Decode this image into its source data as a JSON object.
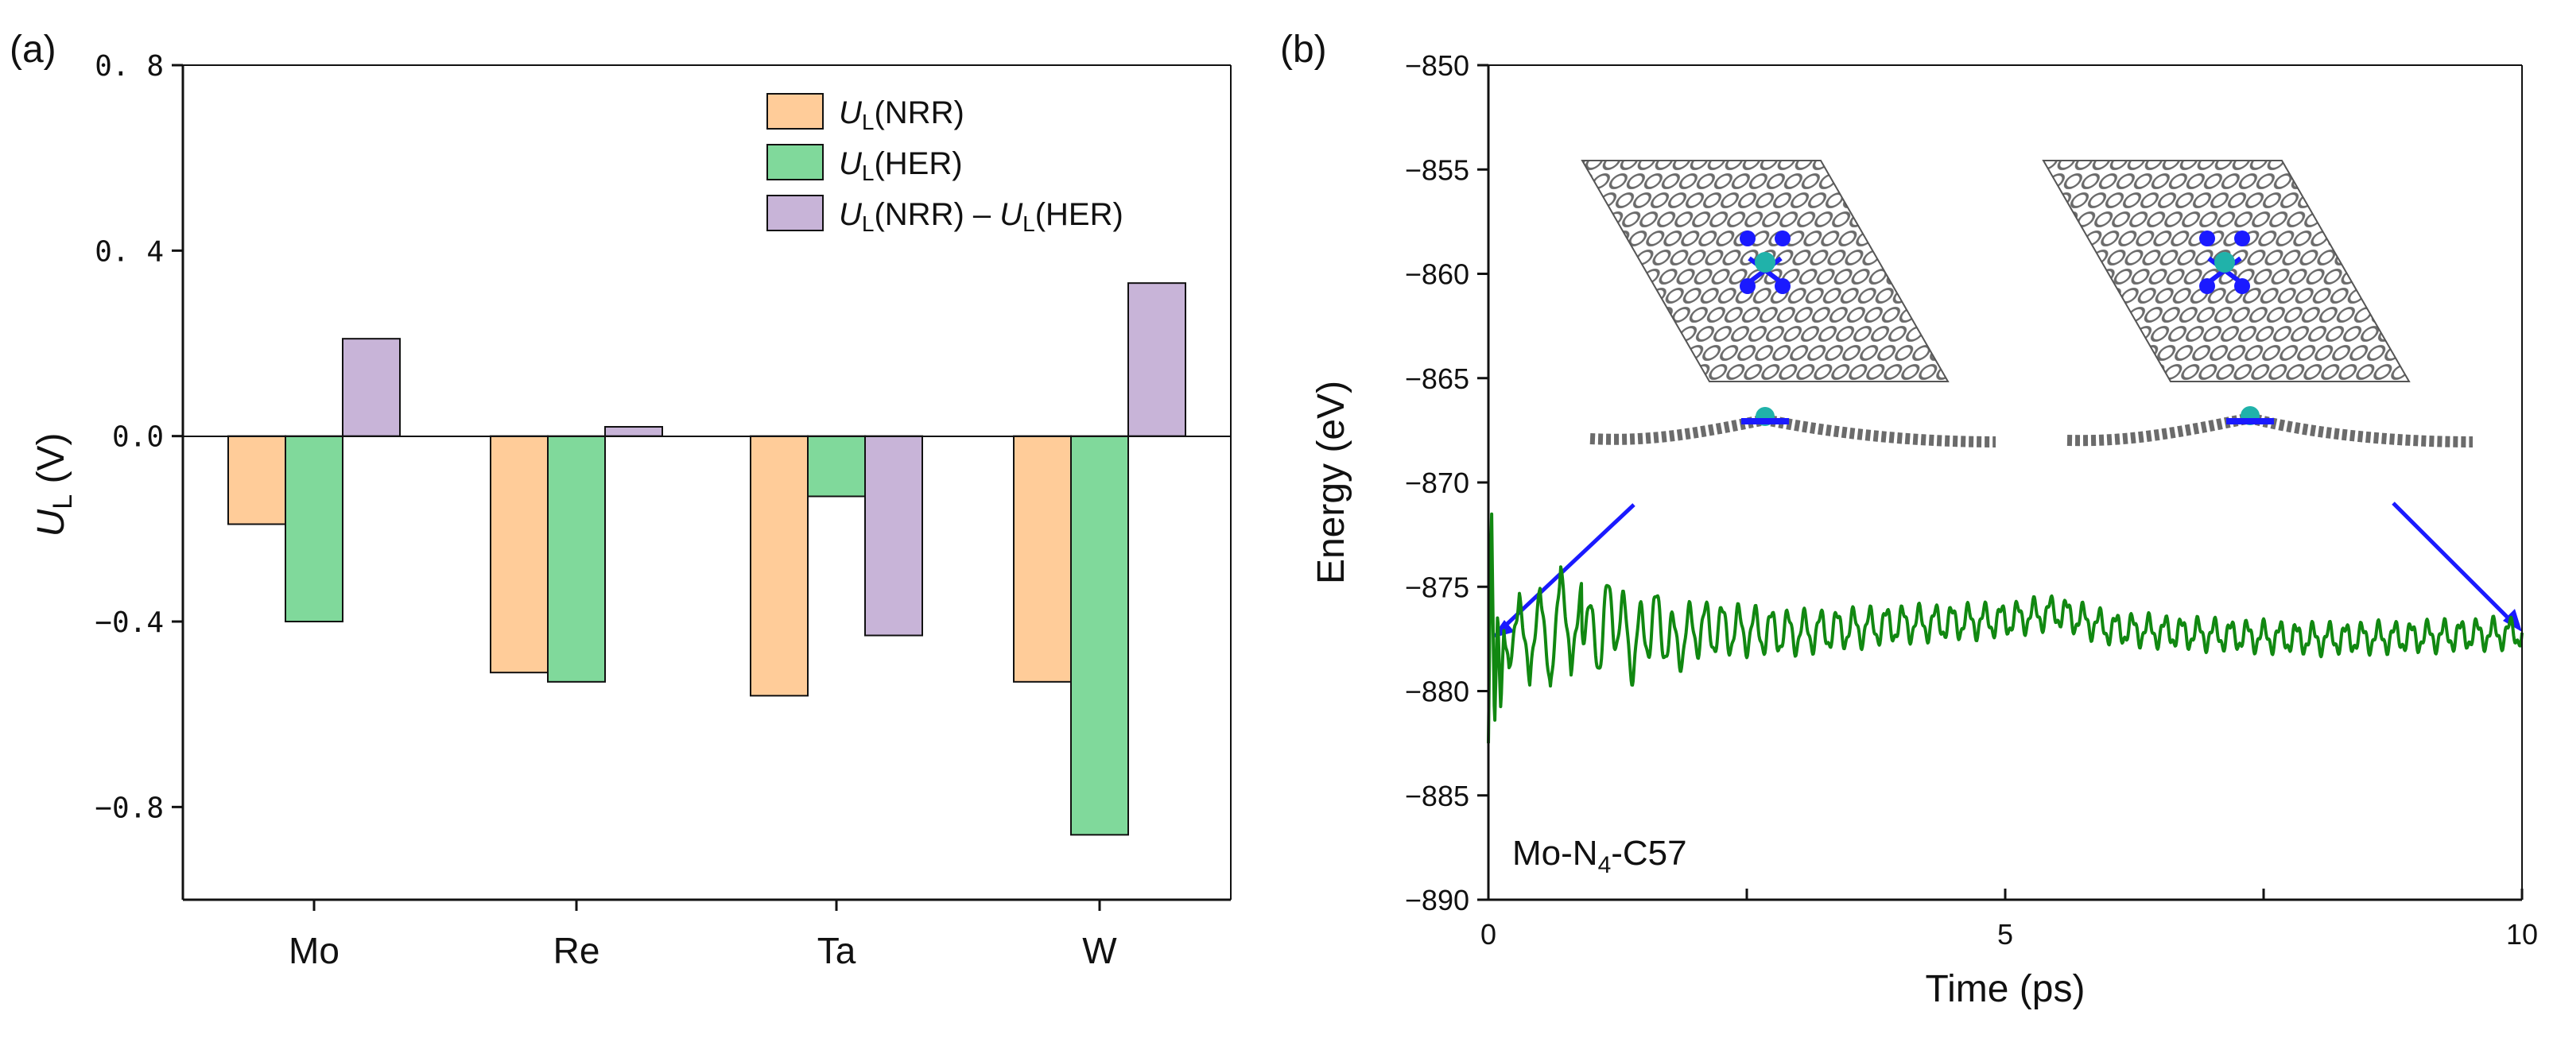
{
  "chart_data": [
    {
      "panel_label": "(a)",
      "type": "bar",
      "categories": [
        "Mo",
        "Re",
        "Ta",
        "W"
      ],
      "series": [
        {
          "name": "U_L(NRR)",
          "legend_main": "U",
          "legend_sub": "L",
          "legend_rest": "(NRR)",
          "color": "#FFCC99",
          "values": [
            -0.19,
            -0.51,
            -0.56,
            -0.53
          ]
        },
        {
          "name": "U_L(HER)",
          "legend_main": "U",
          "legend_sub": "L",
          "legend_rest": "(HER)",
          "color": "#80D99B",
          "values": [
            -0.4,
            -0.53,
            -0.13,
            -0.86
          ]
        },
        {
          "name": "U_L(NRR) - U_L(HER)",
          "legend_main": "U",
          "legend_sub": "L",
          "legend_rest": "(NRR) – ",
          "legend_main2": "U",
          "legend_sub2": "L",
          "legend_rest2": "(HER)",
          "color": "#C8B4D8",
          "values": [
            0.21,
            0.02,
            -0.43,
            0.33
          ]
        }
      ],
      "ylabel_main": "U",
      "ylabel_sub": "L",
      "ylabel_unit": " (V)",
      "ylim": [
        -1.0,
        0.8
      ],
      "yticks": [
        -0.8,
        -0.4,
        0.0,
        0.4,
        0.8
      ],
      "ytick_labels": [
        "−0.8",
        "−0.4",
        "0.0",
        "0. 4",
        "0. 8"
      ],
      "legend_position": "top-right",
      "grid": false
    },
    {
      "panel_label": "(b)",
      "type": "line",
      "xlabel": "Time (ps)",
      "ylabel": "Energy (eV)",
      "xlim": [
        0,
        10
      ],
      "ylim": [
        -890,
        -850
      ],
      "xticks": [
        0,
        5,
        10
      ],
      "xtick_labels": [
        "0",
        "5",
        "10"
      ],
      "yticks": [
        -890,
        -885,
        -880,
        -875,
        -870,
        -865,
        -860,
        -855,
        -850
      ],
      "ytick_labels": [
        "−890",
        "−885",
        "−880",
        "−875",
        "−870",
        "−865",
        "−860",
        "−855",
        "−850"
      ],
      "annotation_main": "Mo-N",
      "annotation_sub": "4",
      "annotation_rest": "-C57",
      "line_color": "#118811",
      "series": [
        {
          "name": "Energy",
          "x": [
            0,
            0.03,
            0.06,
            0.09,
            0.12,
            0.15,
            0.2,
            0.3,
            0.4,
            0.5,
            0.6,
            0.7,
            0.8,
            0.9,
            1.0,
            1.2,
            1.4,
            1.6,
            1.8,
            2.0,
            3.0,
            4.0,
            5.0,
            5.5,
            6.0,
            7.0,
            8.0,
            9.0,
            10.0
          ],
          "y": [
            -882.5,
            -871,
            -882,
            -876,
            -881,
            -877,
            -879,
            -875.5,
            -879.5,
            -875,
            -880,
            -874,
            -879,
            -875,
            -878,
            -876,
            -878,
            -876.5,
            -877.8,
            -877,
            -877.2,
            -876.8,
            -876.6,
            -876.2,
            -877,
            -877.3,
            -877.5,
            -877.4,
            -877.2
          ]
        }
      ]
    }
  ]
}
